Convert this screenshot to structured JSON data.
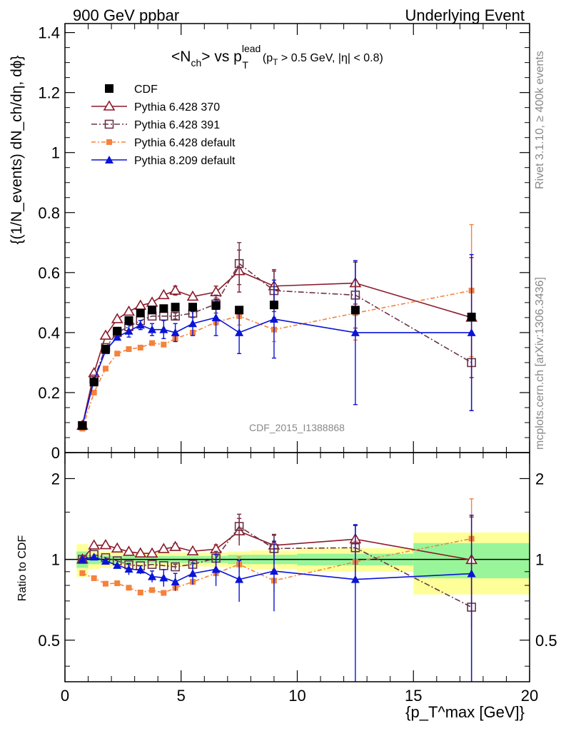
{
  "header": {
    "left": "900 GeV ppbar",
    "right": "Underlying Event"
  },
  "title": {
    "main": "<N",
    "main_sub": "ch",
    "main_mid": "> vs p",
    "main_sup": "lead",
    "main_sub2": "T",
    "cuts_p": "(p",
    "cuts_sub": "T",
    "cuts_rest": " > 0.5 GeV, |η| < 0.8)"
  },
  "side_labels": {
    "rivet": "Rivet 3.1.10, ≥ 400k events",
    "mcplots": "mcplots.cern.ch [arXiv:1306.3436]"
  },
  "watermark": "CDF_2015_I1388868",
  "ylabel_main": "{(1/N_events) dN_ch/dη, dϕ}",
  "ylabel_ratio": "Ratio to CDF",
  "xlabel": "{p_T^max [GeV]}",
  "colors": {
    "cdf": "#000000",
    "p370": "#8b1a2b",
    "p391": "#6b3347",
    "pdef": "#f4823c",
    "p8": "#0a14d6",
    "band_outer": "#ffff99",
    "band_inner": "#99f599"
  },
  "chart_data": {
    "type": "scatter",
    "main_panel": {
      "ylim": [
        0,
        1.43
      ],
      "xlim": [
        0,
        20
      ],
      "yticks": [
        "0",
        "0.2",
        "0.4",
        "0.6",
        "0.8",
        "1",
        "1.2",
        "1.4"
      ],
      "xticks": [
        "0",
        "5",
        "10",
        "15",
        "20"
      ]
    },
    "ratio_panel": {
      "ylim_log": [
        0.35,
        2.5
      ],
      "yticks": [
        "0.5",
        "1",
        "2"
      ]
    },
    "legend": [
      "CDF",
      "Pythia 6.428 370",
      "Pythia 6.428 391",
      "Pythia 6.428 default",
      "Pythia 8.209 default"
    ],
    "x": [
      0.75,
      1.25,
      1.75,
      2.25,
      2.75,
      3.25,
      3.75,
      4.25,
      4.75,
      5.5,
      6.5,
      7.5,
      9.0,
      12.5,
      17.5
    ],
    "series": [
      {
        "name": "CDF",
        "values": [
          0.09,
          0.235,
          0.345,
          0.405,
          0.44,
          0.465,
          0.475,
          0.48,
          0.485,
          0.485,
          0.49,
          0.475,
          0.492,
          0.475,
          0.452
        ]
      },
      {
        "name": "Pythia 6.428 370",
        "values": [
          0.09,
          0.265,
          0.39,
          0.445,
          0.47,
          0.49,
          0.5,
          0.525,
          0.54,
          0.52,
          0.535,
          0.605,
          0.555,
          0.565,
          0.45
        ]
      },
      {
        "name": "Pythia 6.428 391",
        "values": [
          0.09,
          0.245,
          0.35,
          0.4,
          0.42,
          0.44,
          0.455,
          0.455,
          0.455,
          0.465,
          0.495,
          0.63,
          0.54,
          0.525,
          0.3
        ]
      },
      {
        "name": "Pythia 6.428 default",
        "values": [
          0.08,
          0.2,
          0.28,
          0.33,
          0.345,
          0.35,
          0.365,
          0.36,
          0.38,
          0.4,
          0.435,
          0.455,
          0.41,
          0.465,
          0.54
        ]
      },
      {
        "name": "Pythia 8.209 default",
        "values": [
          0.09,
          0.24,
          0.34,
          0.385,
          0.405,
          0.425,
          0.41,
          0.41,
          0.4,
          0.43,
          0.45,
          0.4,
          0.445,
          0.4,
          0.4
        ]
      }
    ],
    "errors": {
      "Pythia 6.428 370": [
        0,
        0,
        0,
        0,
        0,
        0,
        0,
        0,
        0.015,
        0,
        0.02,
        0.07,
        0.05,
        0.07,
        0.2
      ],
      "Pythia 6.428 391": [
        0,
        0,
        0,
        0,
        0,
        0,
        0,
        0,
        0.01,
        0.015,
        0.03,
        0.07,
        0.07,
        0.11,
        0.16
      ],
      "Pythia 6.428 default": [
        0,
        0,
        0,
        0,
        0,
        0,
        0,
        0,
        0,
        0,
        0.01,
        0.03,
        0.04,
        0.09,
        0.22
      ],
      "Pythia 8.209 default": [
        0,
        0,
        0,
        0,
        0.02,
        0.015,
        0.02,
        0.03,
        0.03,
        0.04,
        0.06,
        0.07,
        0.13,
        0.24,
        0.26
      ]
    },
    "ratio_band_bins": [
      0.5,
      1.0,
      1.5,
      2.0,
      2.5,
      3.0,
      3.5,
      4.0,
      4.5,
      5.0,
      6.0,
      7.0,
      8.0,
      10.0,
      15.0,
      20.0
    ],
    "ratio_band_outer": [
      0.14,
      0.08,
      0.07,
      0.06,
      0.06,
      0.06,
      0.06,
      0.06,
      0.06,
      0.06,
      0.06,
      0.07,
      0.08,
      0.1,
      0.26
    ],
    "ratio_band_inner": [
      0.07,
      0.04,
      0.035,
      0.03,
      0.03,
      0.03,
      0.03,
      0.03,
      0.03,
      0.03,
      0.03,
      0.04,
      0.04,
      0.05,
      0.15
    ]
  }
}
